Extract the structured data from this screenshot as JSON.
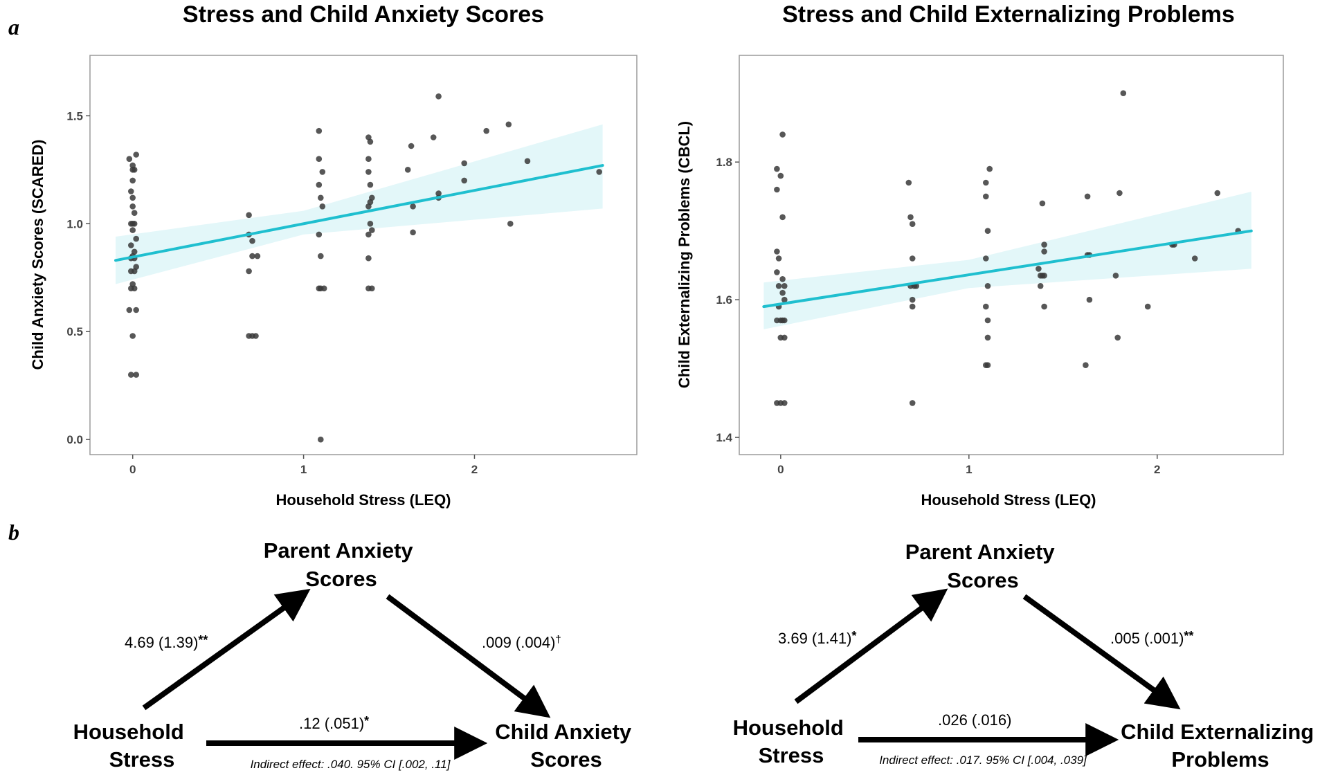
{
  "panel_labels": {
    "a": "a",
    "b": "b"
  },
  "colors": {
    "fit_line": "#1fbfcf",
    "ci_band": "#e3f7f9",
    "points": "#3a3a3a",
    "frame": "#9a9a9a"
  },
  "chart_data": [
    {
      "type": "scatter",
      "title": "Stress and Child Anxiety Scores",
      "xlabel": "Household Stress (LEQ)",
      "ylabel": "Child Anxiety Scores (SCARED)",
      "xlim": [
        -0.25,
        2.95
      ],
      "ylim": [
        -0.07,
        1.78
      ],
      "xticks": [
        0,
        1,
        2
      ],
      "yticks": [
        0.0,
        0.5,
        1.0,
        1.5
      ],
      "x_tick_labels": [
        "0",
        "1",
        "2"
      ],
      "y_tick_labels": [
        "0.0",
        "0.5",
        "1.0",
        "1.5"
      ],
      "fit": {
        "x0": -0.1,
        "y0": 0.83,
        "x1": 2.75,
        "y1": 1.27
      },
      "ci": [
        {
          "x": -0.1,
          "lo": 0.72,
          "hi": 0.94
        },
        {
          "x": 1.0,
          "lo": 0.95,
          "hi": 1.06
        },
        {
          "x": 2.75,
          "lo": 1.07,
          "hi": 1.46
        }
      ],
      "points": [
        [
          -0.02,
          1.3
        ],
        [
          0.02,
          1.32
        ],
        [
          0,
          1.27
        ],
        [
          0,
          1.25
        ],
        [
          0.01,
          1.25
        ],
        [
          0,
          1.2
        ],
        [
          -0.01,
          1.15
        ],
        [
          0,
          1.12
        ],
        [
          0,
          1.08
        ],
        [
          0.01,
          1.05
        ],
        [
          0,
          1.0
        ],
        [
          -0.01,
          1.0
        ],
        [
          0.01,
          1.0
        ],
        [
          0,
          0.97
        ],
        [
          0.02,
          0.93
        ],
        [
          -0.01,
          0.9
        ],
        [
          0.01,
          0.87
        ],
        [
          0,
          0.85
        ],
        [
          -0.01,
          0.84
        ],
        [
          0.01,
          0.84
        ],
        [
          0.02,
          0.8
        ],
        [
          -0.01,
          0.78
        ],
        [
          0.01,
          0.78
        ],
        [
          0,
          0.72
        ],
        [
          -0.01,
          0.7
        ],
        [
          0.01,
          0.7
        ],
        [
          -0.02,
          0.6
        ],
        [
          0.02,
          0.6
        ],
        [
          0,
          0.48
        ],
        [
          -0.01,
          0.3
        ],
        [
          0.02,
          0.3
        ],
        [
          0.68,
          1.04
        ],
        [
          0.68,
          0.95
        ],
        [
          0.7,
          0.92
        ],
        [
          0.7,
          0.85
        ],
        [
          0.73,
          0.85
        ],
        [
          0.68,
          0.78
        ],
        [
          0.68,
          0.48
        ],
        [
          0.7,
          0.48
        ],
        [
          0.72,
          0.48
        ],
        [
          1.09,
          1.43
        ],
        [
          1.09,
          1.3
        ],
        [
          1.11,
          1.24
        ],
        [
          1.09,
          1.18
        ],
        [
          1.1,
          1.12
        ],
        [
          1.11,
          1.08
        ],
        [
          1.09,
          0.95
        ],
        [
          1.1,
          0.85
        ],
        [
          1.09,
          0.7
        ],
        [
          1.1,
          0.7
        ],
        [
          1.12,
          0.7
        ],
        [
          1.1,
          0.0
        ],
        [
          1.38,
          1.4
        ],
        [
          1.39,
          1.38
        ],
        [
          1.38,
          1.3
        ],
        [
          1.38,
          1.24
        ],
        [
          1.39,
          1.18
        ],
        [
          1.4,
          1.12
        ],
        [
          1.39,
          1.1
        ],
        [
          1.38,
          1.08
        ],
        [
          1.39,
          1.0
        ],
        [
          1.4,
          0.97
        ],
        [
          1.38,
          0.95
        ],
        [
          1.38,
          0.84
        ],
        [
          1.38,
          0.7
        ],
        [
          1.4,
          0.7
        ],
        [
          1.61,
          1.25
        ],
        [
          1.63,
          1.36
        ],
        [
          1.64,
          1.08
        ],
        [
          1.64,
          0.96
        ],
        [
          1.76,
          1.4
        ],
        [
          1.79,
          1.59
        ],
        [
          1.79,
          1.14
        ],
        [
          1.79,
          1.12
        ],
        [
          1.94,
          1.28
        ],
        [
          1.94,
          1.2
        ],
        [
          2.07,
          1.43
        ],
        [
          2.2,
          1.46
        ],
        [
          2.21,
          1.0
        ],
        [
          2.31,
          1.29
        ],
        [
          2.73,
          1.24
        ]
      ]
    },
    {
      "type": "scatter",
      "title": "Stress and Child Externalizing Problems",
      "xlabel": "Household Stress (LEQ)",
      "ylabel": "Child Externalizing Problems (CBCL)",
      "xlim": [
        -0.22,
        2.67
      ],
      "ylim": [
        1.375,
        1.955
      ],
      "xticks": [
        0,
        1,
        2
      ],
      "yticks": [
        1.4,
        1.6,
        1.8
      ],
      "x_tick_labels": [
        "0",
        "1",
        "2"
      ],
      "y_tick_labels": [
        "1.4",
        "1.6",
        "1.8"
      ],
      "fit": {
        "x0": -0.09,
        "y0": 1.59,
        "x1": 2.5,
        "y1": 1.7
      },
      "ci": [
        {
          "x": -0.09,
          "lo": 1.557,
          "hi": 1.625
        },
        {
          "x": 1.0,
          "lo": 1.617,
          "hi": 1.658
        },
        {
          "x": 2.5,
          "lo": 1.645,
          "hi": 1.757
        }
      ],
      "points": [
        [
          0.01,
          1.84
        ],
        [
          -0.02,
          1.79
        ],
        [
          0,
          1.78
        ],
        [
          -0.02,
          1.76
        ],
        [
          0.01,
          1.72
        ],
        [
          -0.02,
          1.67
        ],
        [
          -0.01,
          1.66
        ],
        [
          -0.02,
          1.64
        ],
        [
          0.01,
          1.63
        ],
        [
          0.02,
          1.62
        ],
        [
          -0.01,
          1.62
        ],
        [
          0.01,
          1.61
        ],
        [
          0.02,
          1.6
        ],
        [
          -0.01,
          1.59
        ],
        [
          0,
          1.57
        ],
        [
          0.01,
          1.57
        ],
        [
          0.02,
          1.57
        ],
        [
          -0.02,
          1.57
        ],
        [
          0,
          1.545
        ],
        [
          0.02,
          1.545
        ],
        [
          -0.02,
          1.45
        ],
        [
          0,
          1.45
        ],
        [
          0.02,
          1.45
        ],
        [
          0.68,
          1.77
        ],
        [
          0.69,
          1.72
        ],
        [
          0.7,
          1.71
        ],
        [
          0.69,
          1.62
        ],
        [
          0.7,
          1.66
        ],
        [
          0.71,
          1.62
        ],
        [
          0.72,
          1.62
        ],
        [
          0.7,
          1.6
        ],
        [
          0.7,
          1.59
        ],
        [
          0.7,
          1.45
        ],
        [
          1.09,
          1.77
        ],
        [
          1.09,
          1.75
        ],
        [
          1.11,
          1.79
        ],
        [
          1.1,
          1.7
        ],
        [
          1.09,
          1.66
        ],
        [
          1.1,
          1.62
        ],
        [
          1.09,
          1.59
        ],
        [
          1.1,
          1.57
        ],
        [
          1.1,
          1.545
        ],
        [
          1.09,
          1.505
        ],
        [
          1.1,
          1.505
        ],
        [
          1.39,
          1.74
        ],
        [
          1.4,
          1.68
        ],
        [
          1.4,
          1.67
        ],
        [
          1.37,
          1.645
        ],
        [
          1.38,
          1.635
        ],
        [
          1.39,
          1.635
        ],
        [
          1.4,
          1.635
        ],
        [
          1.38,
          1.62
        ],
        [
          1.4,
          1.59
        ],
        [
          1.63,
          1.75
        ],
        [
          1.63,
          1.665
        ],
        [
          1.64,
          1.665
        ],
        [
          1.64,
          1.6
        ],
        [
          1.62,
          1.505
        ],
        [
          1.78,
          1.635
        ],
        [
          1.79,
          1.545
        ],
        [
          1.8,
          1.755
        ],
        [
          1.82,
          1.9
        ],
        [
          1.95,
          1.59
        ],
        [
          2.08,
          1.68
        ],
        [
          2.09,
          1.68
        ],
        [
          2.2,
          1.66
        ],
        [
          2.32,
          1.755
        ],
        [
          2.43,
          1.7
        ]
      ]
    }
  ],
  "mediation": [
    {
      "mediator": [
        "Parent Anxiety",
        "Scores"
      ],
      "predictor": [
        "Household",
        "Stress"
      ],
      "outcome": [
        "Child Anxiety",
        "Scores"
      ],
      "a_path": "4.69 (1.39)",
      "a_sig": "**",
      "b_path": ".009 (.004)",
      "b_sig": "†",
      "c_path": ".12 (.051)",
      "c_sig": "*",
      "indirect": "Indirect effect: .040. 95% CI [.002, .11]"
    },
    {
      "mediator": [
        "Parent Anxiety",
        "Scores"
      ],
      "predictor": [
        "Household",
        "Stress"
      ],
      "outcome": [
        "Child Externalizing",
        "Problems"
      ],
      "a_path": "3.69 (1.41)",
      "a_sig": "*",
      "b_path": ".005 (.001)",
      "b_sig": "**",
      "c_path": ".026 (.016)",
      "c_sig": "",
      "indirect": "Indirect effect: .017. 95% CI [.004, .039]"
    }
  ]
}
